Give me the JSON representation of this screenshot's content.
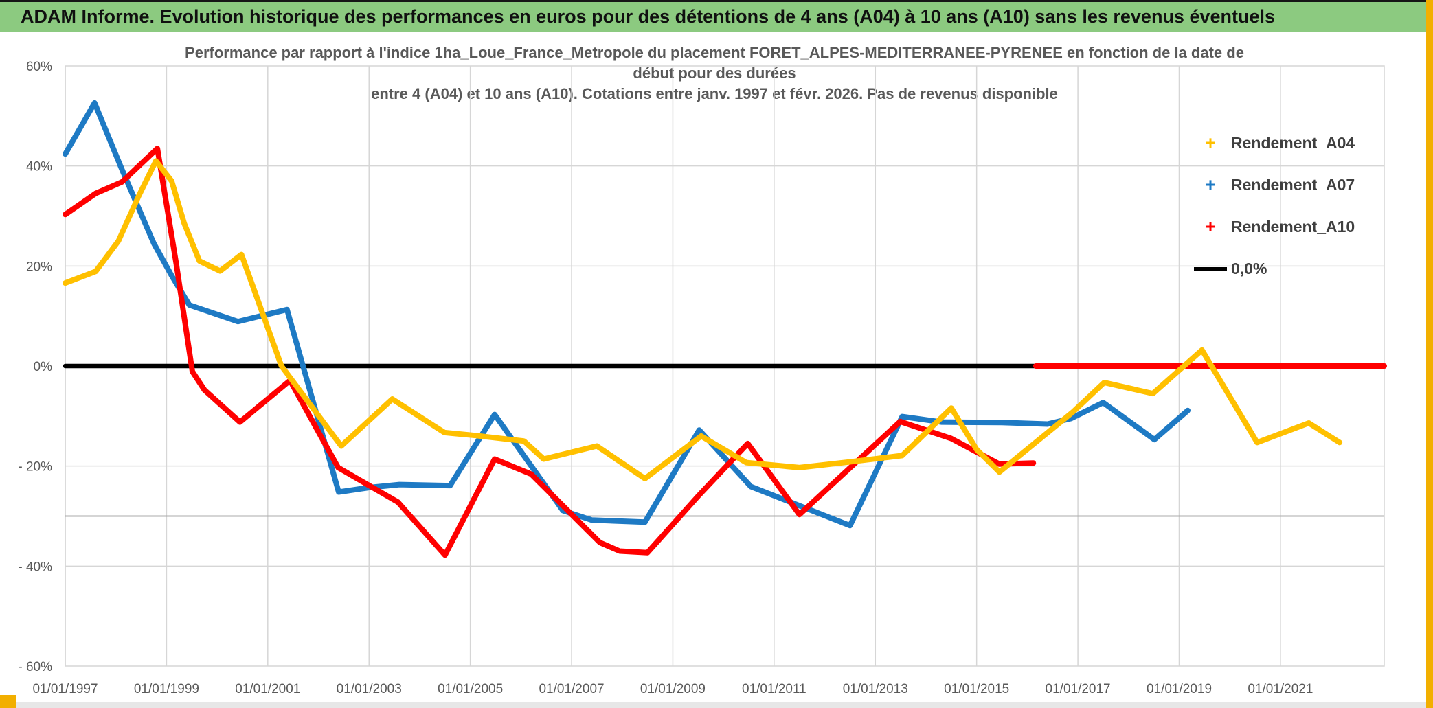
{
  "window": {
    "title": "ADAM Informe. Evolution historique des performances en euros pour des détentions de 4 ans (A04) à 10 ans (A10) sans les revenus éventuels"
  },
  "chart": {
    "title_line1": "Performance par rapport à l'indice 1ha_Loue_France_Metropole  du placement FORET_ALPES-MEDITERRANEE-PYRENEE en fonction de la date de",
    "title_line2": "début pour des durées",
    "title_line3": "entre 4 (A04) et 10 ans (A10). Cotations entre janv. 1997 et févr. 2026. Pas de revenus disponible"
  },
  "legend": {
    "items": [
      {
        "label": "Rendement_A04",
        "marker": "+",
        "color": "#FFC000"
      },
      {
        "label": "Rendement_A07",
        "marker": "+",
        "color": "#1E7AC4"
      },
      {
        "label": "Rendement_A10",
        "marker": "+",
        "color": "#FF0000"
      },
      {
        "label": "0,0%",
        "marker": "line",
        "color": "#000000"
      }
    ]
  },
  "chart_data": {
    "type": "line",
    "title": "Performance par rapport à l'indice 1ha_Loue_France_Metropole du placement FORET_ALPES-MEDITERRANEE-PYRENEE en fonction de la date de début pour des durées entre 4 (A04) et 10 ans (A10). Cotations entre janv. 1997 et févr. 2026. Pas de revenus disponible",
    "xlabel": "",
    "ylabel": "",
    "legend_position": "right",
    "grid": true,
    "grid_color": "#D6D6D6",
    "axis_line_color": "#ABABAB",
    "axis_cross_y": -30,
    "xlim": [
      1997.0,
      2023.05
    ],
    "ylim": [
      -60,
      60
    ],
    "x_ticks": [
      {
        "v": 1997,
        "label": "01/01/1997"
      },
      {
        "v": 1999,
        "label": "01/01/1999"
      },
      {
        "v": 2001,
        "label": "01/01/2001"
      },
      {
        "v": 2003,
        "label": "01/01/2003"
      },
      {
        "v": 2005,
        "label": "01/01/2005"
      },
      {
        "v": 2007,
        "label": "01/01/2007"
      },
      {
        "v": 2009,
        "label": "01/01/2009"
      },
      {
        "v": 2011,
        "label": "01/01/2011"
      },
      {
        "v": 2013,
        "label": "01/01/2013"
      },
      {
        "v": 2015,
        "label": "01/01/2015"
      },
      {
        "v": 2017,
        "label": "01/01/2017"
      },
      {
        "v": 2019,
        "label": "01/01/2019"
      },
      {
        "v": 2021,
        "label": "01/01/2021"
      }
    ],
    "y_ticks": [
      {
        "v": 60,
        "label": "60%"
      },
      {
        "v": 40,
        "label": "40%"
      },
      {
        "v": 20,
        "label": "20%"
      },
      {
        "v": 0,
        "label": "0%"
      },
      {
        "v": -20,
        "label": "- 20%"
      },
      {
        "v": -40,
        "label": "- 40%"
      },
      {
        "v": -60,
        "label": "- 60%"
      }
    ],
    "draw_order": [
      "0,0%",
      "Rendement_A07",
      "Rendement_A10",
      "Rendement_A04"
    ],
    "series": [
      {
        "name": "Rendement_A04",
        "color": "#FFC000",
        "marker": "+",
        "width": 8,
        "segments": [
          [
            [
              1997.0,
              16.6
            ],
            [
              1997.6,
              18.9
            ],
            [
              1998.05,
              25.0
            ],
            [
              1998.45,
              34.0
            ],
            [
              1998.79,
              41.0
            ],
            [
              1999.1,
              37.0
            ],
            [
              1999.35,
              28.5
            ],
            [
              1999.65,
              21.0
            ],
            [
              2000.06,
              19.0
            ],
            [
              2000.48,
              22.3
            ],
            [
              2001.27,
              0.0
            ],
            [
              2002.45,
              -16.0
            ],
            [
              2003.46,
              -6.6
            ],
            [
              2004.49,
              -13.3
            ],
            [
              2005.1,
              -13.9
            ],
            [
              2006.06,
              -15.0
            ],
            [
              2006.45,
              -18.6
            ],
            [
              2007.5,
              -16.0
            ],
            [
              2008.45,
              -22.5
            ],
            [
              2009.56,
              -14.0
            ],
            [
              2010.45,
              -19.3
            ],
            [
              2011.5,
              -20.3
            ],
            [
              2012.47,
              -19.2
            ],
            [
              2013.53,
              -17.9
            ],
            [
              2014.5,
              -8.4
            ],
            [
              2015.0,
              -16.7
            ],
            [
              2015.45,
              -21.2
            ],
            [
              2016.9,
              -9.2
            ],
            [
              2017.52,
              -3.3
            ],
            [
              2018.48,
              -5.5
            ],
            [
              2019.45,
              3.2
            ],
            [
              2020.54,
              -15.3
            ],
            [
              2021.56,
              -11.4
            ],
            [
              2022.17,
              -15.3
            ]
          ]
        ]
      },
      {
        "name": "Rendement_A07",
        "color": "#1E7AC4",
        "marker": "+",
        "width": 8,
        "segments": [
          [
            [
              1997.0,
              42.4
            ],
            [
              1997.58,
              52.6
            ],
            [
              1998.12,
              39.3
            ],
            [
              1998.75,
              24.5
            ],
            [
              1999.11,
              17.9
            ],
            [
              1999.45,
              12.2
            ],
            [
              1999.8,
              11.0
            ],
            [
              2000.41,
              8.9
            ],
            [
              2001.38,
              11.3
            ],
            [
              2002.4,
              -25.2
            ],
            [
              2003.0,
              -24.3
            ],
            [
              2003.6,
              -23.7
            ],
            [
              2004.6,
              -23.9
            ],
            [
              2005.48,
              -9.7
            ],
            [
              2006.83,
              -28.9
            ],
            [
              2007.4,
              -30.8
            ],
            [
              2008.45,
              -31.2
            ],
            [
              2009.52,
              -12.8
            ],
            [
              2010.54,
              -24.1
            ],
            [
              2012.5,
              -31.9
            ],
            [
              2013.53,
              -10.1
            ],
            [
              2014.3,
              -11.2
            ],
            [
              2015.5,
              -11.3
            ],
            [
              2016.4,
              -11.6
            ],
            [
              2016.86,
              -10.5
            ],
            [
              2017.5,
              -7.3
            ],
            [
              2018.51,
              -14.7
            ],
            [
              2019.17,
              -8.9
            ]
          ]
        ]
      },
      {
        "name": "Rendement_A10",
        "color": "#FF0000",
        "marker": "+",
        "width": 8,
        "segments": [
          [
            [
              1997.0,
              30.3
            ],
            [
              1997.6,
              34.5
            ],
            [
              1998.12,
              36.8
            ],
            [
              1998.82,
              43.5
            ],
            [
              1999.2,
              20.0
            ],
            [
              1999.51,
              -1.1
            ],
            [
              1999.75,
              -4.8
            ],
            [
              2000.45,
              -11.2
            ],
            [
              2001.44,
              -2.9
            ],
            [
              2002.39,
              -20.3
            ],
            [
              2003.57,
              -27.2
            ],
            [
              2004.5,
              -37.8
            ],
            [
              2005.48,
              -18.6
            ],
            [
              2006.2,
              -21.6
            ],
            [
              2007.56,
              -35.3
            ],
            [
              2007.95,
              -37.0
            ],
            [
              2008.5,
              -37.3
            ],
            [
              2009.5,
              -26.0
            ],
            [
              2010.48,
              -15.5
            ],
            [
              2011.5,
              -29.7
            ],
            [
              2013.49,
              -11.1
            ],
            [
              2014.5,
              -14.5
            ],
            [
              2015.45,
              -19.6
            ],
            [
              2016.12,
              -19.4
            ]
          ],
          [
            [
              2016.17,
              0.0
            ],
            [
              2023.05,
              0.0
            ]
          ]
        ]
      },
      {
        "name": "0,0%",
        "color": "#000000",
        "marker": "line",
        "width": 6.5,
        "segments": [
          [
            [
              1997.0,
              0.0
            ],
            [
              2023.05,
              0.0
            ]
          ]
        ]
      }
    ]
  }
}
